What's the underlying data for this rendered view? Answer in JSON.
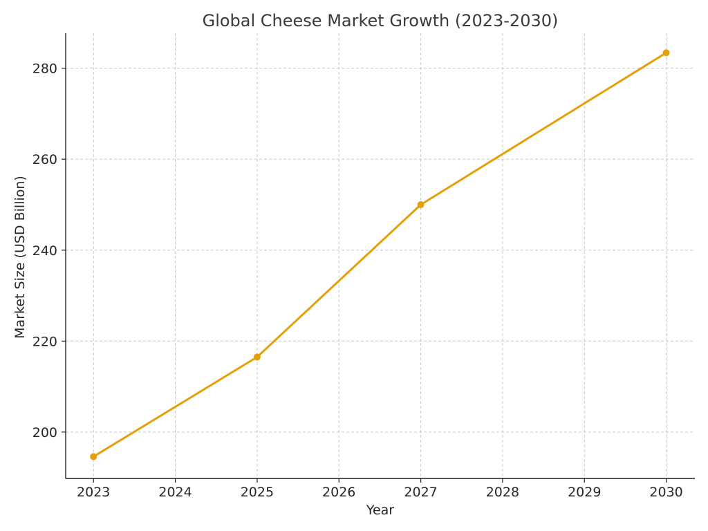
{
  "chart_data": {
    "type": "line",
    "title": "Global Cheese Market Growth (2023-2030)",
    "xlabel": "Year",
    "ylabel": "Market Size (USD Billion)",
    "x_ticks": [
      "2023",
      "2024",
      "2025",
      "2026",
      "2027",
      "2028",
      "2029",
      "2030"
    ],
    "y_ticks": [
      200,
      220,
      240,
      260,
      280
    ],
    "xlim": [
      2022.66,
      2030.35
    ],
    "ylim": [
      189.8,
      287.7
    ],
    "grid": true,
    "series": [
      {
        "color": "#E3A008",
        "x": [
          2023,
          2025,
          2027,
          2030
        ],
        "y": [
          194.6,
          216.5,
          250.0,
          283.4
        ]
      }
    ]
  }
}
